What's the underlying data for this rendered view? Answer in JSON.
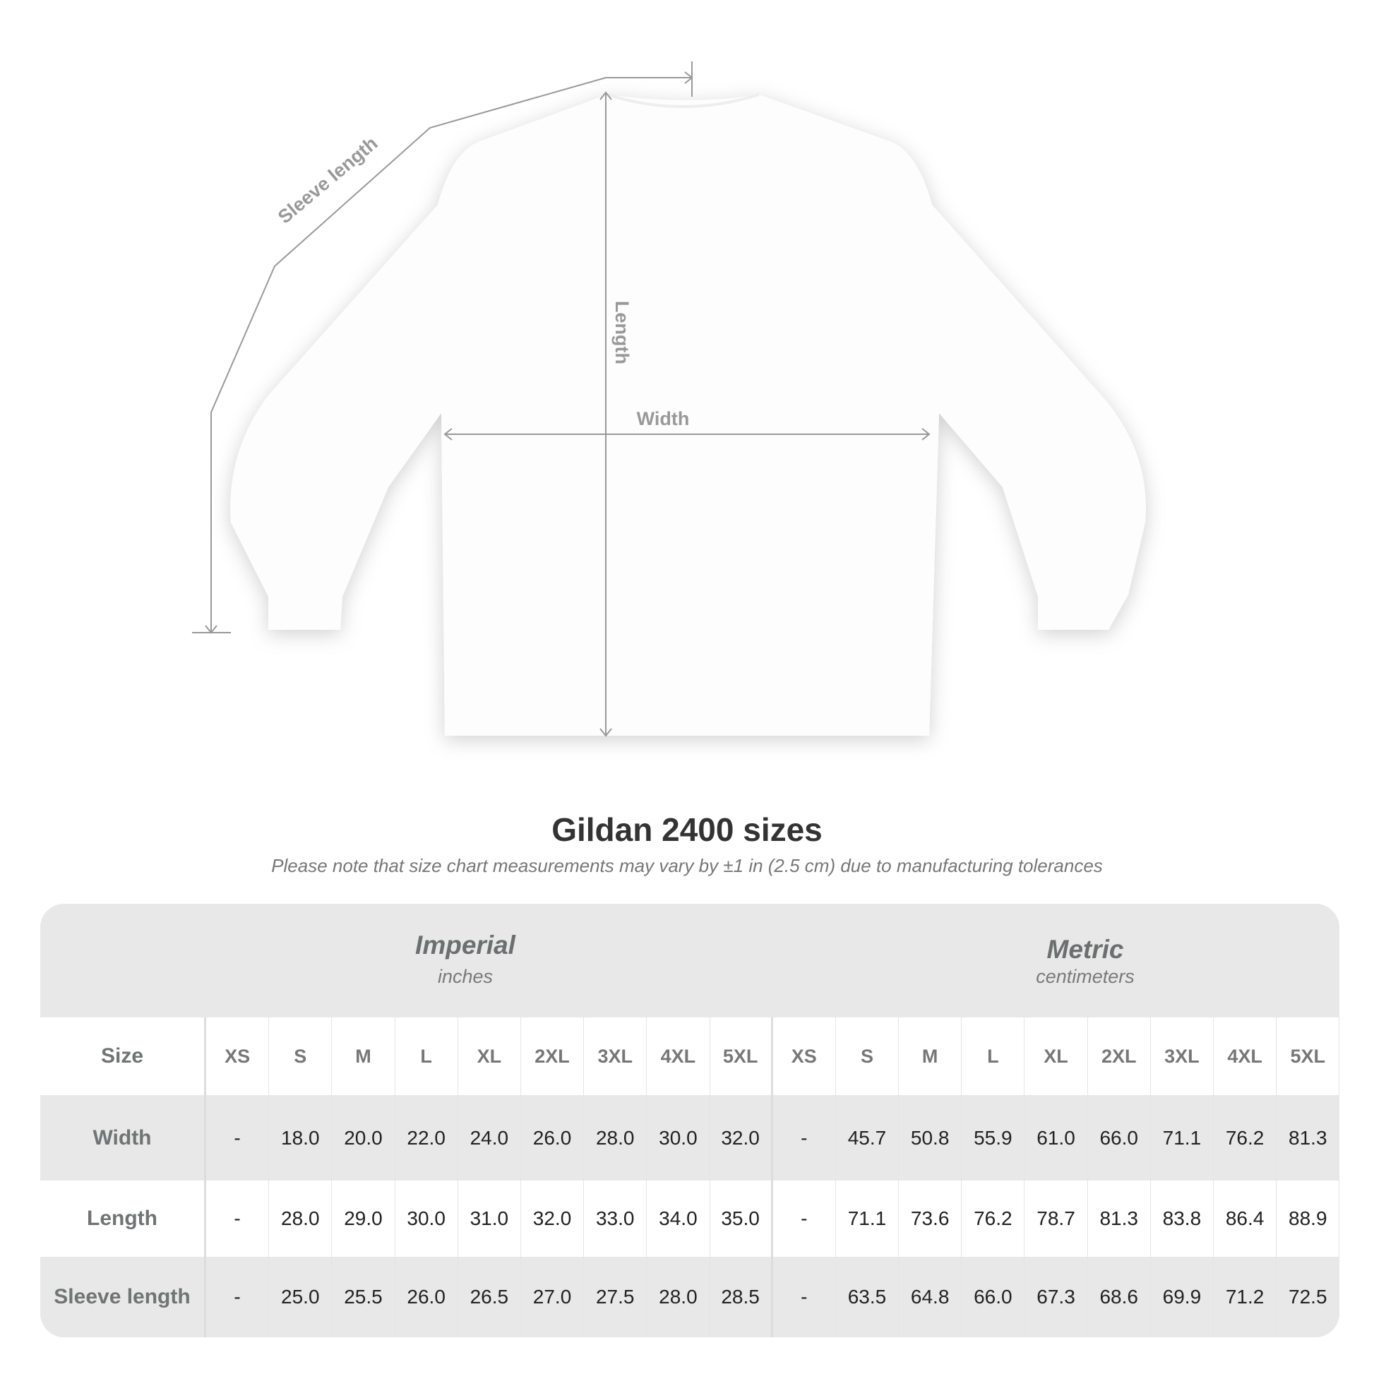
{
  "diagram": {
    "labels": {
      "sleeve": "Sleeve length",
      "length": "Length",
      "width": "Width"
    }
  },
  "title": "Gildan 2400 sizes",
  "subtitle": "Please note that size chart measurements may vary by ±1 in (2.5 cm) due to manufacturing tolerances",
  "table": {
    "imperial": {
      "name": "Imperial",
      "unit": "inches"
    },
    "metric": {
      "name": "Metric",
      "unit": "centimeters"
    },
    "size_label": "Size",
    "sizes": [
      "XS",
      "S",
      "M",
      "L",
      "XL",
      "2XL",
      "3XL",
      "4XL",
      "5XL",
      "XS",
      "S",
      "M",
      "L",
      "XL",
      "2XL",
      "3XL",
      "4XL",
      "5XL"
    ],
    "rows": [
      {
        "label": "Width",
        "values": [
          "-",
          "18.0",
          "20.0",
          "22.0",
          "24.0",
          "26.0",
          "28.0",
          "30.0",
          "32.0",
          "-",
          "45.7",
          "50.8",
          "55.9",
          "61.0",
          "66.0",
          "71.1",
          "76.2",
          "81.3"
        ]
      },
      {
        "label": "Length",
        "values": [
          "-",
          "28.0",
          "29.0",
          "30.0",
          "31.0",
          "32.0",
          "33.0",
          "34.0",
          "35.0",
          "-",
          "71.1",
          "73.6",
          "76.2",
          "78.7",
          "81.3",
          "83.8",
          "86.4",
          "88.9"
        ]
      },
      {
        "label": "Sleeve length",
        "values": [
          "-",
          "25.0",
          "25.5",
          "26.0",
          "26.5",
          "27.0",
          "27.5",
          "28.0",
          "28.5",
          "-",
          "63.5",
          "64.8",
          "66.0",
          "67.3",
          "68.6",
          "69.9",
          "71.2",
          "72.5"
        ]
      }
    ]
  }
}
